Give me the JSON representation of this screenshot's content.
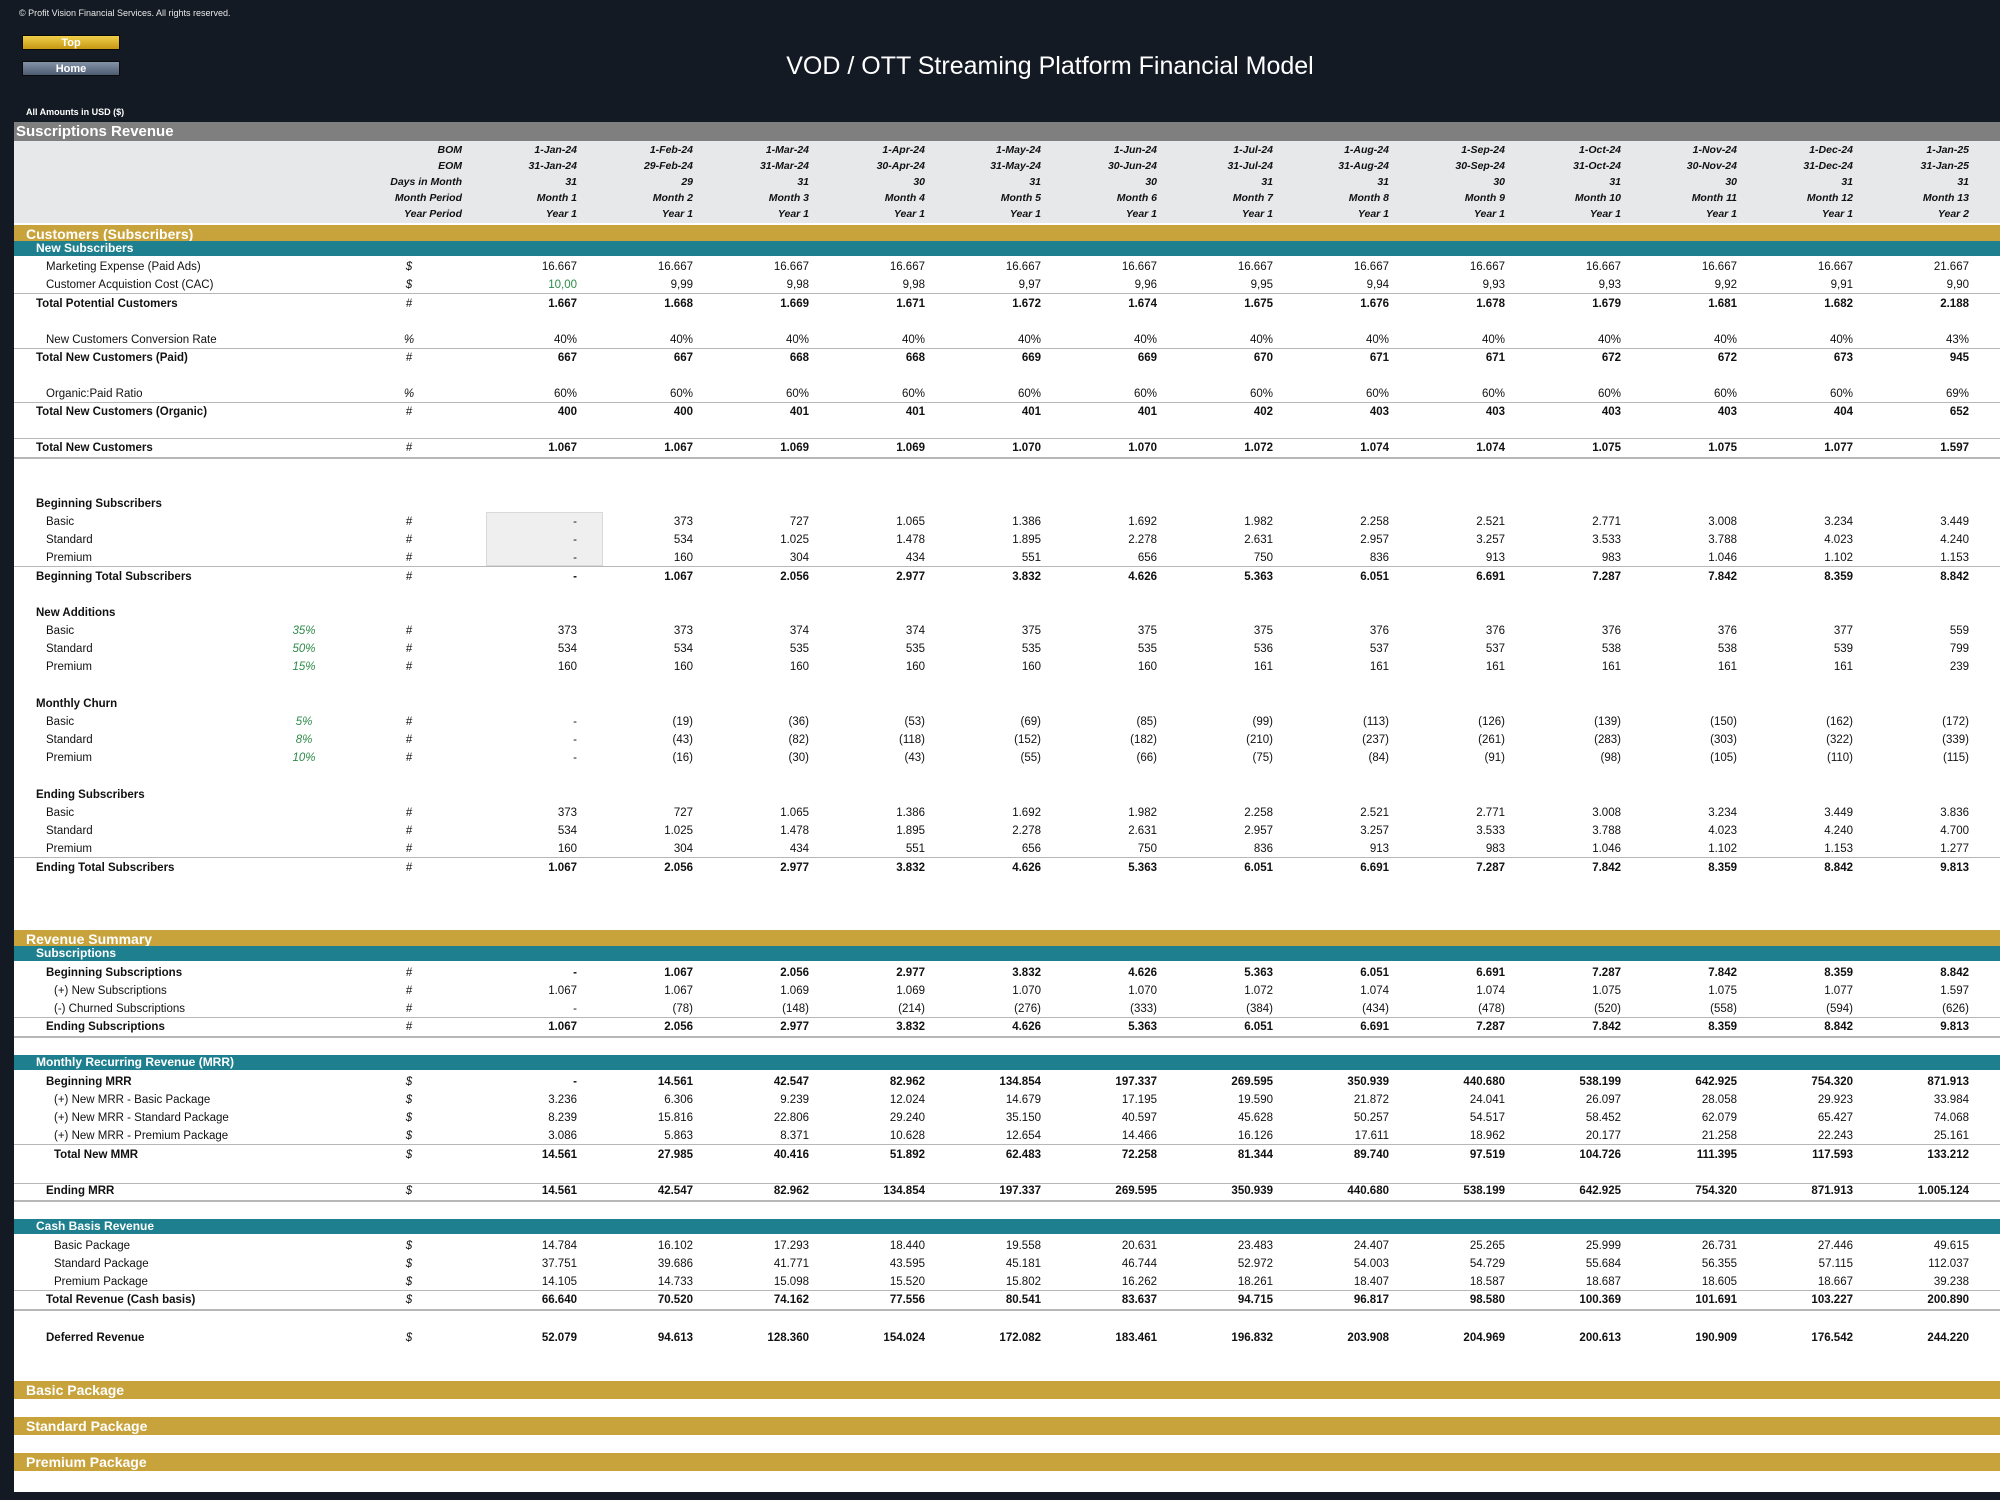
{
  "header": {
    "copyright": "© Profit Vision Financial Services. All rights reserved.",
    "top_button": "Top",
    "home_button": "Home",
    "title": "VOD / OTT Streaming Platform Financial Model",
    "amounts_note": "All Amounts in  USD ($)"
  },
  "sheet_title": "Suscriptions Revenue",
  "timeline": [
    {
      "label": "BOM",
      "values": [
        "1-Jan-24",
        "1-Feb-24",
        "1-Mar-24",
        "1-Apr-24",
        "1-May-24",
        "1-Jun-24",
        "1-Jul-24",
        "1-Aug-24",
        "1-Sep-24",
        "1-Oct-24",
        "1-Nov-24",
        "1-Dec-24",
        "1-Jan-25"
      ]
    },
    {
      "label": "EOM",
      "values": [
        "31-Jan-24",
        "29-Feb-24",
        "31-Mar-24",
        "30-Apr-24",
        "31-May-24",
        "30-Jun-24",
        "31-Jul-24",
        "31-Aug-24",
        "30-Sep-24",
        "31-Oct-24",
        "30-Nov-24",
        "31-Dec-24",
        "31-Jan-25"
      ]
    },
    {
      "label": "Days in Month",
      "values": [
        "31",
        "29",
        "31",
        "30",
        "31",
        "30",
        "31",
        "31",
        "30",
        "31",
        "30",
        "31",
        "31"
      ]
    },
    {
      "label": "Month Period",
      "values": [
        "Month 1",
        "Month 2",
        "Month 3",
        "Month 4",
        "Month 5",
        "Month 6",
        "Month 7",
        "Month 8",
        "Month 9",
        "Month 10",
        "Month 11",
        "Month 12",
        "Month 13"
      ]
    },
    {
      "label": "Year Period",
      "values": [
        "Year 1",
        "Year 1",
        "Year 1",
        "Year 1",
        "Year 1",
        "Year 1",
        "Year 1",
        "Year 1",
        "Year 1",
        "Year 1",
        "Year 1",
        "Year 1",
        "Year 2"
      ]
    }
  ],
  "sections": {
    "customers": "Customers (Subscribers)",
    "new_subscribers": "New Subscribers",
    "revenue_summary": "Revenue Summary",
    "subscriptions": "Subscriptions",
    "mrr": "Monthly Recurring Revenue (MRR)",
    "cash_basis": "Cash Basis Revenue",
    "basic_package": "Basic Package",
    "standard_package": "Standard Package",
    "premium_package": "Premium Package"
  },
  "group_labels": {
    "beginning": "Beginning Subscribers",
    "additions": "New Additions",
    "churn": "Monthly Churn",
    "ending": "Ending Subscribers"
  },
  "rows": {
    "marketing": {
      "label": "Marketing Expense (Paid Ads)",
      "unit": "$",
      "values": [
        "16.667",
        "16.667",
        "16.667",
        "16.667",
        "16.667",
        "16.667",
        "16.667",
        "16.667",
        "16.667",
        "16.667",
        "16.667",
        "16.667",
        "21.667"
      ]
    },
    "cac": {
      "label": "Customer Acquistion Cost (CAC)",
      "unit": "$",
      "values": [
        "10,00",
        "9,99",
        "9,98",
        "9,98",
        "9,97",
        "9,96",
        "9,95",
        "9,94",
        "9,93",
        "9,93",
        "9,92",
        "9,91",
        "9,90"
      ]
    },
    "potential": {
      "label": "Total Potential Customers",
      "unit": "#",
      "values": [
        "1.667",
        "1.668",
        "1.669",
        "1.671",
        "1.672",
        "1.674",
        "1.675",
        "1.676",
        "1.678",
        "1.679",
        "1.681",
        "1.682",
        "2.188"
      ]
    },
    "conv_rate": {
      "label": "New Customers Conversion Rate",
      "unit": "%",
      "values": [
        "40%",
        "40%",
        "40%",
        "40%",
        "40%",
        "40%",
        "40%",
        "40%",
        "40%",
        "40%",
        "40%",
        "40%",
        "43%"
      ]
    },
    "paid": {
      "label": "Total New Customers (Paid)",
      "unit": "#",
      "values": [
        "667",
        "667",
        "668",
        "668",
        "669",
        "669",
        "670",
        "671",
        "671",
        "672",
        "672",
        "673",
        "945"
      ]
    },
    "organic_ratio": {
      "label": "Organic:Paid Ratio",
      "unit": "%",
      "values": [
        "60%",
        "60%",
        "60%",
        "60%",
        "60%",
        "60%",
        "60%",
        "60%",
        "60%",
        "60%",
        "60%",
        "60%",
        "69%"
      ]
    },
    "organic": {
      "label": "Total New Customers (Organic)",
      "unit": "#",
      "values": [
        "400",
        "400",
        "401",
        "401",
        "401",
        "401",
        "402",
        "403",
        "403",
        "403",
        "403",
        "404",
        "652"
      ]
    },
    "total_new": {
      "label": "Total New Customers",
      "unit": "#",
      "values": [
        "1.067",
        "1.067",
        "1.069",
        "1.069",
        "1.070",
        "1.070",
        "1.072",
        "1.074",
        "1.074",
        "1.075",
        "1.075",
        "1.077",
        "1.597"
      ]
    },
    "beg_basic": {
      "label": "Basic",
      "unit": "#",
      "values": [
        "-",
        "373",
        "727",
        "1.065",
        "1.386",
        "1.692",
        "1.982",
        "2.258",
        "2.521",
        "2.771",
        "3.008",
        "3.234",
        "3.449"
      ]
    },
    "beg_standard": {
      "label": "Standard",
      "unit": "#",
      "values": [
        "-",
        "534",
        "1.025",
        "1.478",
        "1.895",
        "2.278",
        "2.631",
        "2.957",
        "3.257",
        "3.533",
        "3.788",
        "4.023",
        "4.240"
      ]
    },
    "beg_premium": {
      "label": "Premium",
      "unit": "#",
      "values": [
        "-",
        "160",
        "304",
        "434",
        "551",
        "656",
        "750",
        "836",
        "913",
        "983",
        "1.046",
        "1.102",
        "1.153"
      ]
    },
    "beg_total": {
      "label": "Beginning Total Subscribers",
      "unit": "#",
      "values": [
        "-",
        "1.067",
        "2.056",
        "2.977",
        "3.832",
        "4.626",
        "5.363",
        "6.051",
        "6.691",
        "7.287",
        "7.842",
        "8.359",
        "8.842"
      ]
    },
    "add_basic": {
      "label": "Basic",
      "pct": "35%",
      "unit": "#",
      "values": [
        "373",
        "373",
        "374",
        "374",
        "375",
        "375",
        "375",
        "376",
        "376",
        "376",
        "376",
        "377",
        "559"
      ]
    },
    "add_standard": {
      "label": "Standard",
      "pct": "50%",
      "unit": "#",
      "values": [
        "534",
        "534",
        "535",
        "535",
        "535",
        "535",
        "536",
        "537",
        "537",
        "538",
        "538",
        "539",
        "799"
      ]
    },
    "add_premium": {
      "label": "Premium",
      "pct": "15%",
      "unit": "#",
      "values": [
        "160",
        "160",
        "160",
        "160",
        "160",
        "160",
        "161",
        "161",
        "161",
        "161",
        "161",
        "161",
        "239"
      ]
    },
    "churn_basic": {
      "label": "Basic",
      "pct": "5%",
      "unit": "#",
      "values": [
        "-",
        "(19)",
        "(36)",
        "(53)",
        "(69)",
        "(85)",
        "(99)",
        "(113)",
        "(126)",
        "(139)",
        "(150)",
        "(162)",
        "(172)"
      ]
    },
    "churn_standard": {
      "label": "Standard",
      "pct": "8%",
      "unit": "#",
      "values": [
        "-",
        "(43)",
        "(82)",
        "(118)",
        "(152)",
        "(182)",
        "(210)",
        "(237)",
        "(261)",
        "(283)",
        "(303)",
        "(322)",
        "(339)"
      ]
    },
    "churn_premium": {
      "label": "Premium",
      "pct": "10%",
      "unit": "#",
      "values": [
        "-",
        "(16)",
        "(30)",
        "(43)",
        "(55)",
        "(66)",
        "(75)",
        "(84)",
        "(91)",
        "(98)",
        "(105)",
        "(110)",
        "(115)"
      ]
    },
    "end_basic": {
      "label": "Basic",
      "unit": "#",
      "values": [
        "373",
        "727",
        "1.065",
        "1.386",
        "1.692",
        "1.982",
        "2.258",
        "2.521",
        "2.771",
        "3.008",
        "3.234",
        "3.449",
        "3.836"
      ]
    },
    "end_standard": {
      "label": "Standard",
      "unit": "#",
      "values": [
        "534",
        "1.025",
        "1.478",
        "1.895",
        "2.278",
        "2.631",
        "2.957",
        "3.257",
        "3.533",
        "3.788",
        "4.023",
        "4.240",
        "4.700"
      ]
    },
    "end_premium": {
      "label": "Premium",
      "unit": "#",
      "values": [
        "160",
        "304",
        "434",
        "551",
        "656",
        "750",
        "836",
        "913",
        "983",
        "1.046",
        "1.102",
        "1.153",
        "1.277"
      ]
    },
    "end_total": {
      "label": "Ending Total Subscribers",
      "unit": "#",
      "values": [
        "1.067",
        "2.056",
        "2.977",
        "3.832",
        "4.626",
        "5.363",
        "6.051",
        "6.691",
        "7.287",
        "7.842",
        "8.359",
        "8.842",
        "9.813"
      ]
    },
    "sub_beg": {
      "label": "Beginning Subscriptions",
      "unit": "#",
      "values": [
        "-",
        "1.067",
        "2.056",
        "2.977",
        "3.832",
        "4.626",
        "5.363",
        "6.051",
        "6.691",
        "7.287",
        "7.842",
        "8.359",
        "8.842"
      ]
    },
    "sub_new": {
      "label": "(+) New Subscriptions",
      "unit": "#",
      "values": [
        "1.067",
        "1.067",
        "1.069",
        "1.069",
        "1.070",
        "1.070",
        "1.072",
        "1.074",
        "1.074",
        "1.075",
        "1.075",
        "1.077",
        "1.597"
      ]
    },
    "sub_churn": {
      "label": "(-) Churned Subscriptions",
      "unit": "#",
      "values": [
        "-",
        "(78)",
        "(148)",
        "(214)",
        "(276)",
        "(333)",
        "(384)",
        "(434)",
        "(478)",
        "(520)",
        "(558)",
        "(594)",
        "(626)"
      ]
    },
    "sub_end": {
      "label": "Ending Subscriptions",
      "unit": "#",
      "values": [
        "1.067",
        "2.056",
        "2.977",
        "3.832",
        "4.626",
        "5.363",
        "6.051",
        "6.691",
        "7.287",
        "7.842",
        "8.359",
        "8.842",
        "9.813"
      ]
    },
    "mrr_beg": {
      "label": "Beginning MRR",
      "unit": "$",
      "values": [
        "-",
        "14.561",
        "42.547",
        "82.962",
        "134.854",
        "197.337",
        "269.595",
        "350.939",
        "440.680",
        "538.199",
        "642.925",
        "754.320",
        "871.913"
      ]
    },
    "mrr_basic": {
      "label": "(+) New MRR - Basic Package",
      "unit": "$",
      "values": [
        "3.236",
        "6.306",
        "9.239",
        "12.024",
        "14.679",
        "17.195",
        "19.590",
        "21.872",
        "24.041",
        "26.097",
        "28.058",
        "29.923",
        "33.984"
      ]
    },
    "mrr_standard": {
      "label": "(+) New MRR - Standard Package",
      "unit": "$",
      "values": [
        "8.239",
        "15.816",
        "22.806",
        "29.240",
        "35.150",
        "40.597",
        "45.628",
        "50.257",
        "54.517",
        "58.452",
        "62.079",
        "65.427",
        "74.068"
      ]
    },
    "mrr_premium": {
      "label": "(+) New MRR - Premium Package",
      "unit": "$",
      "values": [
        "3.086",
        "5.863",
        "8.371",
        "10.628",
        "12.654",
        "14.466",
        "16.126",
        "17.611",
        "18.962",
        "20.177",
        "21.258",
        "22.243",
        "25.161"
      ]
    },
    "mrr_total_new": {
      "label": "Total New MMR",
      "unit": "$",
      "values": [
        "14.561",
        "27.985",
        "40.416",
        "51.892",
        "62.483",
        "72.258",
        "81.344",
        "89.740",
        "97.519",
        "104.726",
        "111.395",
        "117.593",
        "133.212"
      ]
    },
    "mrr_end": {
      "label": "Ending MRR",
      "unit": "$",
      "values": [
        "14.561",
        "42.547",
        "82.962",
        "134.854",
        "197.337",
        "269.595",
        "350.939",
        "440.680",
        "538.199",
        "642.925",
        "754.320",
        "871.913",
        "1.005.124"
      ]
    },
    "cash_basic": {
      "label": "Basic Package",
      "unit": "$",
      "values": [
        "14.784",
        "16.102",
        "17.293",
        "18.440",
        "19.558",
        "20.631",
        "23.483",
        "24.407",
        "25.265",
        "25.999",
        "26.731",
        "27.446",
        "49.615"
      ]
    },
    "cash_standard": {
      "label": "Standard Package",
      "unit": "$",
      "values": [
        "37.751",
        "39.686",
        "41.771",
        "43.595",
        "45.181",
        "46.744",
        "52.972",
        "54.003",
        "54.729",
        "55.684",
        "56.355",
        "57.115",
        "112.037"
      ]
    },
    "cash_premium": {
      "label": "Premium Package",
      "unit": "$",
      "values": [
        "14.105",
        "14.733",
        "15.098",
        "15.520",
        "15.802",
        "16.262",
        "18.261",
        "18.407",
        "18.587",
        "18.687",
        "18.605",
        "18.667",
        "39.238"
      ]
    },
    "cash_total": {
      "label": "Total Revenue (Cash basis)",
      "unit": "$",
      "values": [
        "66.640",
        "70.520",
        "74.162",
        "77.556",
        "80.541",
        "83.637",
        "94.715",
        "96.817",
        "98.580",
        "100.369",
        "101.691",
        "103.227",
        "200.890"
      ]
    },
    "deferred": {
      "label": "Deferred Revenue",
      "unit": "$",
      "values": [
        "52.079",
        "94.613",
        "128.360",
        "154.024",
        "172.082",
        "183.461",
        "196.832",
        "203.908",
        "204.969",
        "200.613",
        "190.909",
        "176.542",
        "244.220"
      ]
    }
  }
}
